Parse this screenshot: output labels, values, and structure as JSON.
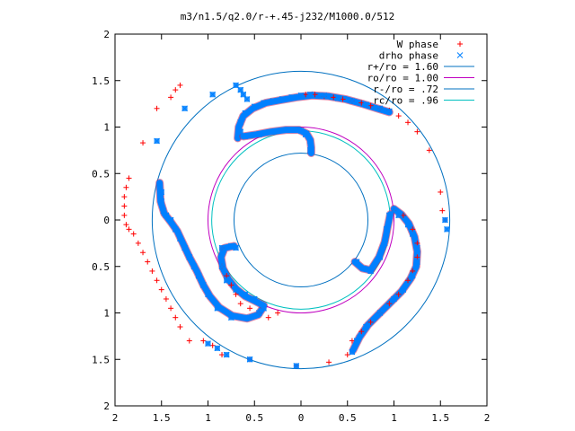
{
  "chart_data": {
    "type": "scatter",
    "title": "m3/n1.5/q2.0/r-+.45-j232/M1000.0/512",
    "xlabel": "",
    "ylabel": "",
    "xlim": [
      -2,
      2
    ],
    "ylim": [
      -2,
      2
    ],
    "x_ticks": [
      -2,
      -1.5,
      -1,
      -0.5,
      0,
      0.5,
      1,
      1.5,
      2
    ],
    "y_ticks": [
      -2,
      -1.5,
      -1,
      -0.5,
      0,
      0.5,
      1,
      1.5,
      2
    ],
    "x_tick_labels": [
      "2",
      "1.5",
      "1",
      "0.5",
      "0",
      "0.5",
      "1",
      "1.5",
      "2"
    ],
    "y_tick_labels": [
      "2",
      "1.5",
      "1",
      "0.5",
      "0",
      "0.5",
      "1",
      "1.5",
      "2"
    ],
    "grid": false,
    "legend_position": "top-right",
    "colors": {
      "w_phase": "#ff0000",
      "drho_phase": "#0080ff",
      "r_plus": "#0070c0",
      "ro": "#c000c0",
      "r_minus": "#0070c0",
      "rc": "#00c0c0"
    },
    "circles": [
      {
        "name": "r+/ro = 1.60",
        "radius": 1.6,
        "color": "#0070c0"
      },
      {
        "name": "ro/ro = 1.00",
        "radius": 1.0,
        "color": "#c000c0"
      },
      {
        "name": "r-/ro = .72",
        "radius": 0.72,
        "color": "#0070c0"
      },
      {
        "name": "rc/ro = .96",
        "radius": 0.96,
        "color": "#00c0c0"
      }
    ],
    "series": [
      {
        "name": "W phase",
        "marker": "+",
        "color": "#ff0000",
        "points": [
          [
            -1.3,
            1.45
          ],
          [
            -1.35,
            1.4
          ],
          [
            -1.4,
            1.32
          ],
          [
            -1.55,
            1.2
          ],
          [
            -1.7,
            0.83
          ],
          [
            -1.85,
            0.45
          ],
          [
            -1.88,
            0.35
          ],
          [
            -1.9,
            0.25
          ],
          [
            -1.9,
            0.15
          ],
          [
            -1.9,
            0.05
          ],
          [
            -1.88,
            -0.05
          ],
          [
            -1.85,
            -0.1
          ],
          [
            -1.8,
            -0.15
          ],
          [
            -1.75,
            -0.25
          ],
          [
            -1.7,
            -0.35
          ],
          [
            -1.65,
            -0.45
          ],
          [
            -1.6,
            -0.55
          ],
          [
            -1.55,
            -0.65
          ],
          [
            -1.5,
            -0.75
          ],
          [
            -1.45,
            -0.85
          ],
          [
            -1.4,
            -0.95
          ],
          [
            -1.35,
            -1.05
          ],
          [
            -1.3,
            -1.15
          ],
          [
            -1.2,
            -1.3
          ],
          [
            -1.05,
            -1.3
          ],
          [
            -0.95,
            -1.35
          ],
          [
            -0.85,
            -1.45
          ],
          [
            -0.55,
            -1.5
          ],
          [
            -0.05,
            -1.57
          ],
          [
            0.3,
            -1.53
          ],
          [
            -0.85,
            -0.3
          ],
          [
            -0.85,
            -0.5
          ],
          [
            -0.8,
            -0.6
          ],
          [
            -0.75,
            -0.7
          ],
          [
            -0.7,
            -0.8
          ],
          [
            -0.65,
            -0.9
          ],
          [
            -0.55,
            -0.95
          ],
          [
            -0.45,
            -1.0
          ],
          [
            -0.35,
            -1.05
          ],
          [
            -0.25,
            -1.0
          ],
          [
            0.05,
            1.35
          ],
          [
            0.15,
            1.35
          ],
          [
            0.25,
            1.33
          ],
          [
            0.35,
            1.32
          ],
          [
            0.45,
            1.3
          ],
          [
            0.55,
            1.28
          ],
          [
            0.65,
            1.26
          ],
          [
            0.75,
            1.23
          ],
          [
            0.85,
            1.2
          ],
          [
            0.95,
            1.18
          ],
          [
            1.05,
            1.12
          ],
          [
            1.15,
            1.05
          ],
          [
            1.25,
            0.95
          ],
          [
            1.38,
            0.75
          ],
          [
            1.5,
            0.3
          ],
          [
            1.52,
            0.1
          ],
          [
            1.55,
            0.0
          ],
          [
            1.0,
            0.1
          ],
          [
            1.1,
            0.05
          ],
          [
            1.2,
            -0.1
          ],
          [
            1.25,
            -0.25
          ],
          [
            1.25,
            -0.4
          ],
          [
            1.2,
            -0.55
          ],
          [
            1.15,
            -0.65
          ],
          [
            1.05,
            -0.8
          ],
          [
            0.95,
            -0.9
          ],
          [
            0.85,
            -1.0
          ],
          [
            0.75,
            -1.1
          ],
          [
            0.65,
            -1.2
          ],
          [
            0.55,
            -1.3
          ],
          [
            0.5,
            -1.45
          ]
        ]
      },
      {
        "name": "drho phase",
        "marker": "x",
        "color": "#0080ff",
        "points": [
          [
            -0.7,
            1.45
          ],
          [
            -0.65,
            1.4
          ],
          [
            -0.62,
            1.35
          ],
          [
            -0.58,
            1.3
          ],
          [
            -0.95,
            1.35
          ],
          [
            -1.25,
            1.2
          ],
          [
            -1.55,
            0.85
          ],
          [
            -0.65,
            0.95
          ],
          [
            -0.65,
            1.05
          ],
          [
            -0.6,
            1.15
          ],
          [
            -0.5,
            1.22
          ],
          [
            -0.4,
            1.26
          ],
          [
            -0.3,
            1.28
          ],
          [
            -0.2,
            1.3
          ],
          [
            -0.1,
            1.32
          ],
          [
            0.0,
            1.34
          ],
          [
            0.1,
            1.35
          ],
          [
            0.25,
            1.34
          ],
          [
            0.4,
            1.31
          ],
          [
            0.55,
            1.28
          ],
          [
            0.7,
            1.24
          ],
          [
            0.85,
            1.2
          ],
          [
            0.95,
            1.17
          ],
          [
            -0.6,
            0.9
          ],
          [
            -0.45,
            0.92
          ],
          [
            -0.3,
            0.95
          ],
          [
            -0.15,
            0.97
          ],
          [
            0.0,
            0.96
          ],
          [
            0.05,
            0.92
          ],
          [
            0.1,
            0.85
          ],
          [
            0.1,
            0.75
          ],
          [
            -1.5,
            0.3
          ],
          [
            -1.5,
            0.2
          ],
          [
            -1.48,
            0.1
          ],
          [
            -1.45,
            0.05
          ],
          [
            -1.4,
            0.0
          ],
          [
            -1.35,
            -0.1
          ],
          [
            -1.3,
            -0.2
          ],
          [
            -1.25,
            -0.3
          ],
          [
            -1.2,
            -0.4
          ],
          [
            -1.15,
            -0.5
          ],
          [
            -1.1,
            -0.6
          ],
          [
            -1.05,
            -0.7
          ],
          [
            -1.0,
            -0.8
          ],
          [
            -0.9,
            -0.95
          ],
          [
            -0.75,
            -1.05
          ],
          [
            -0.6,
            -1.05
          ],
          [
            -0.45,
            -1.0
          ],
          [
            -0.4,
            -0.95
          ],
          [
            -0.85,
            -0.3
          ],
          [
            -0.75,
            -0.28
          ],
          [
            -0.7,
            -0.3
          ],
          [
            -0.85,
            -0.5
          ],
          [
            -0.8,
            -0.65
          ],
          [
            -0.7,
            -0.75
          ],
          [
            -0.6,
            -0.8
          ],
          [
            -0.5,
            -0.85
          ],
          [
            1.0,
            0.1
          ],
          [
            1.05,
            0.05
          ],
          [
            1.15,
            -0.05
          ],
          [
            1.2,
            -0.15
          ],
          [
            1.25,
            -0.3
          ],
          [
            1.25,
            -0.45
          ],
          [
            1.2,
            -0.6
          ],
          [
            1.1,
            -0.75
          ],
          [
            1.0,
            -0.85
          ],
          [
            0.85,
            -1.0
          ],
          [
            0.7,
            -1.15
          ],
          [
            0.6,
            -1.3
          ],
          [
            0.55,
            -1.42
          ],
          [
            0.95,
            0.05
          ],
          [
            0.92,
            -0.1
          ],
          [
            0.9,
            -0.25
          ],
          [
            0.85,
            -0.4
          ],
          [
            0.75,
            -0.55
          ],
          [
            0.6,
            -0.45
          ],
          [
            -1.0,
            -1.33
          ],
          [
            -0.9,
            -1.38
          ],
          [
            -0.8,
            -1.45
          ],
          [
            -0.55,
            -1.5
          ],
          [
            -0.05,
            -1.57
          ],
          [
            1.57,
            -0.1
          ],
          [
            1.55,
            0.0
          ]
        ]
      }
    ],
    "paths": {
      "upper_arm": [
        [
          -0.68,
          0.88
        ],
        [
          -0.67,
          1.0
        ],
        [
          -0.62,
          1.12
        ],
        [
          -0.52,
          1.2
        ],
        [
          -0.38,
          1.26
        ],
        [
          -0.22,
          1.29
        ],
        [
          -0.05,
          1.32
        ],
        [
          0.12,
          1.34
        ],
        [
          0.3,
          1.33
        ],
        [
          0.48,
          1.3
        ],
        [
          0.66,
          1.25
        ],
        [
          0.82,
          1.2
        ],
        [
          0.95,
          1.16
        ]
      ],
      "upper_inner": [
        [
          -0.62,
          0.9
        ],
        [
          -0.48,
          0.92
        ],
        [
          -0.32,
          0.95
        ],
        [
          -0.16,
          0.97
        ],
        [
          -0.02,
          0.97
        ],
        [
          0.06,
          0.93
        ],
        [
          0.1,
          0.86
        ],
        [
          0.11,
          0.78
        ],
        [
          0.11,
          0.72
        ]
      ],
      "left_arm": [
        [
          -1.52,
          0.4
        ],
        [
          -1.51,
          0.2
        ],
        [
          -1.47,
          0.07
        ],
        [
          -1.4,
          -0.02
        ],
        [
          -1.33,
          -0.12
        ],
        [
          -1.27,
          -0.25
        ],
        [
          -1.2,
          -0.4
        ],
        [
          -1.12,
          -0.55
        ],
        [
          -1.05,
          -0.7
        ],
        [
          -0.98,
          -0.82
        ],
        [
          -0.88,
          -0.94
        ],
        [
          -0.74,
          -1.03
        ],
        [
          -0.58,
          -1.06
        ],
        [
          -0.46,
          -1.02
        ],
        [
          -0.42,
          -0.96
        ]
      ],
      "left_inner": [
        [
          -0.72,
          -0.28
        ],
        [
          -0.82,
          -0.3
        ],
        [
          -0.86,
          -0.4
        ],
        [
          -0.84,
          -0.52
        ],
        [
          -0.78,
          -0.64
        ],
        [
          -0.7,
          -0.74
        ],
        [
          -0.6,
          -0.82
        ],
        [
          -0.5,
          -0.87
        ],
        [
          -0.4,
          -0.92
        ]
      ],
      "right_arm": [
        [
          1.0,
          0.12
        ],
        [
          1.08,
          0.06
        ],
        [
          1.16,
          -0.04
        ],
        [
          1.22,
          -0.18
        ],
        [
          1.25,
          -0.34
        ],
        [
          1.24,
          -0.5
        ],
        [
          1.18,
          -0.63
        ],
        [
          1.08,
          -0.77
        ],
        [
          0.96,
          -0.89
        ],
        [
          0.84,
          -1.01
        ],
        [
          0.72,
          -1.13
        ],
        [
          0.63,
          -1.26
        ],
        [
          0.56,
          -1.4
        ]
      ],
      "right_inner": [
        [
          0.96,
          0.06
        ],
        [
          0.93,
          -0.08
        ],
        [
          0.9,
          -0.24
        ],
        [
          0.84,
          -0.4
        ],
        [
          0.75,
          -0.54
        ],
        [
          0.66,
          -0.52
        ],
        [
          0.58,
          -0.45
        ]
      ]
    }
  }
}
